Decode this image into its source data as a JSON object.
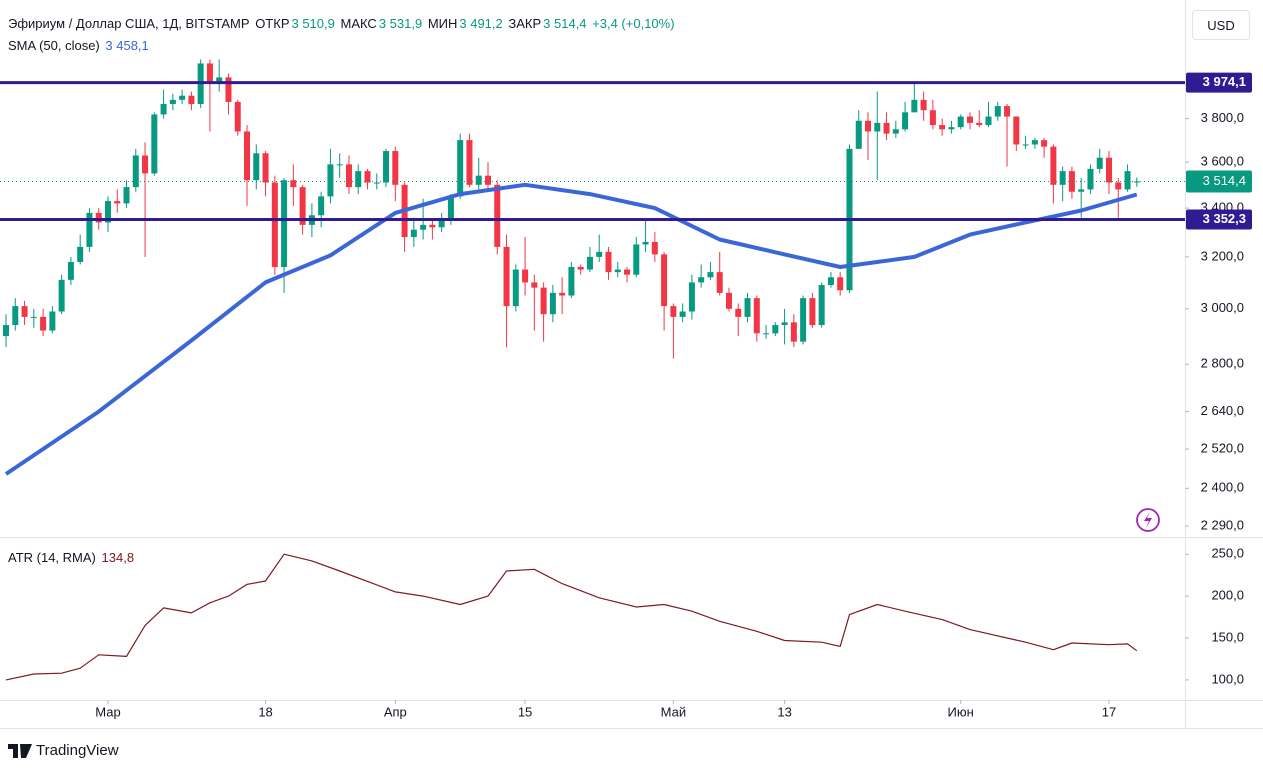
{
  "header": {
    "symbol": "Эфириум / Доллар США, 1Д, BITSTAMP",
    "open_label": "ОТКР",
    "open": "3 510,9",
    "high_label": "МАКС",
    "high": "3 531,9",
    "low_label": "МИН",
    "low": "3 491,2",
    "close_label": "ЗАКР",
    "close": "3 514,4",
    "change": "+3,4 (+0,10%)"
  },
  "currency": "USD",
  "brand": "TradingView",
  "chart_data": [
    {
      "type": "candlestick",
      "log": true,
      "ylim": [
        2259,
        4404
      ],
      "xlim": [
        -0.65,
        127.2
      ],
      "up_color": "#089981",
      "down_color": "#f23645",
      "yticks": [
        {
          "value": 2290,
          "label": "2 290,0"
        },
        {
          "value": 2400,
          "label": "2 400,0"
        },
        {
          "value": 2520,
          "label": "2 520,0"
        },
        {
          "value": 2640,
          "label": "2 640,0"
        },
        {
          "value": 2800,
          "label": "2 800,0"
        },
        {
          "value": 3000,
          "label": "3 000,0"
        },
        {
          "value": 3200,
          "label": "3 200,0"
        },
        {
          "value": 3400,
          "label": "3 400,0"
        },
        {
          "value": 3600,
          "label": "3 600,0"
        },
        {
          "value": 3800,
          "label": "3 800,0"
        }
      ],
      "xticks": [
        {
          "value": 11,
          "label": "Мар"
        },
        {
          "value": 28,
          "label": "18"
        },
        {
          "value": 42,
          "label": "Апр"
        },
        {
          "value": 56,
          "label": "15"
        },
        {
          "value": 72,
          "label": "Май"
        },
        {
          "value": 84,
          "label": "13"
        },
        {
          "value": 103,
          "label": "Июн"
        },
        {
          "value": 119,
          "label": "17"
        }
      ],
      "levels": [
        {
          "value": 3974.1,
          "label": "3 974,1",
          "color": "#311b92"
        },
        {
          "value": 3352.3,
          "label": "3 352,3",
          "color": "#311b92"
        }
      ],
      "last": 3514.4,
      "open": [
        2900,
        2940,
        3010,
        2970,
        2970,
        2920,
        2990,
        3110,
        3180,
        3240,
        3380,
        3340,
        3430,
        3420,
        3490,
        3630,
        3550,
        3820,
        3870,
        3890,
        3910,
        3870,
        4070,
        3980,
        4000,
        3880,
        3740,
        3520,
        3640,
        3510,
        3160,
        3520,
        3490,
        3330,
        3370,
        3450,
        3590,
        3590,
        3490,
        3560,
        3510,
        3510,
        3650,
        3500,
        3280,
        3310,
        3330,
        3320,
        3350,
        3450,
        3700,
        3500,
        3540,
        3500,
        3240,
        3010,
        3150,
        3100,
        3080,
        2980,
        3060,
        3050,
        3160,
        3150,
        3200,
        3220,
        3140,
        3150,
        3130,
        3250,
        3260,
        3210,
        3010,
        2970,
        2990,
        3100,
        3120,
        3140,
        3060,
        3000,
        2970,
        3040,
        2910,
        2910,
        2940,
        2950,
        2880,
        3040,
        2940,
        3090,
        3120,
        3070,
        3660,
        3790,
        3740,
        3780,
        3730,
        3750,
        3830,
        3890,
        3840,
        3770,
        3750,
        3760,
        3810,
        3780,
        3770,
        3810,
        3860,
        3810,
        3680,
        3680,
        3700,
        3670,
        3500,
        3560,
        3470,
        3480,
        3570,
        3620,
        3510,
        3480,
        3510.9
      ],
      "high": [
        2980,
        3040,
        3030,
        3000,
        3000,
        3010,
        3130,
        3200,
        3290,
        3400,
        3400,
        3450,
        3480,
        3520,
        3660,
        3690,
        3830,
        3940,
        3920,
        3940,
        3930,
        4090,
        4090,
        4090,
        4020,
        3890,
        3770,
        3680,
        3650,
        3540,
        3530,
        3590,
        3500,
        3420,
        3470,
        3660,
        3640,
        3630,
        3590,
        3570,
        3550,
        3660,
        3670,
        3510,
        3360,
        3440,
        3350,
        3380,
        3460,
        3730,
        3730,
        3620,
        3600,
        3520,
        3290,
        3170,
        3280,
        3130,
        3100,
        3090,
        3120,
        3180,
        3170,
        3240,
        3290,
        3240,
        3180,
        3160,
        3280,
        3350,
        3300,
        3220,
        3020,
        3020,
        3130,
        3170,
        3180,
        3220,
        3080,
        3020,
        3060,
        3050,
        2940,
        2950,
        3000,
        2980,
        3050,
        3060,
        3100,
        3140,
        3140,
        3680,
        3840,
        3830,
        3930,
        3830,
        3790,
        3880,
        3970,
        3930,
        3890,
        3800,
        3790,
        3820,
        3830,
        3840,
        3880,
        3880,
        3870,
        3810,
        3720,
        3710,
        3710,
        3680,
        3580,
        3580,
        3530,
        3590,
        3660,
        3650,
        3530,
        3590,
        3531.9
      ],
      "low": [
        2860,
        2920,
        2940,
        2930,
        2900,
        2910,
        2980,
        3090,
        3170,
        3220,
        3310,
        3300,
        3380,
        3400,
        3470,
        3200,
        3540,
        3800,
        3840,
        3870,
        3840,
        3850,
        3740,
        3930,
        3820,
        3720,
        3410,
        3480,
        3450,
        3130,
        3060,
        3410,
        3290,
        3280,
        3320,
        3420,
        3530,
        3460,
        3460,
        3480,
        3480,
        3490,
        3430,
        3220,
        3240,
        3270,
        3270,
        3300,
        3330,
        3440,
        3490,
        3480,
        3480,
        3210,
        2860,
        2990,
        3050,
        2920,
        2880,
        2950,
        2980,
        3040,
        3130,
        3140,
        3180,
        3110,
        3120,
        3100,
        3120,
        3220,
        3180,
        2920,
        2820,
        2950,
        2960,
        3080,
        3110,
        3050,
        2990,
        2900,
        2950,
        2880,
        2890,
        2900,
        2870,
        2860,
        2870,
        2930,
        2930,
        3080,
        3050,
        3060,
        3660,
        3610,
        3520,
        3700,
        3710,
        3740,
        3830,
        3790,
        3750,
        3720,
        3730,
        3750,
        3750,
        3760,
        3760,
        3790,
        3580,
        3650,
        3660,
        3660,
        3620,
        3420,
        3430,
        3440,
        3360,
        3460,
        3550,
        3460,
        3360,
        3470,
        3491.2
      ],
      "close": [
        2940,
        3010,
        2970,
        2970,
        2920,
        2990,
        3110,
        3180,
        3240,
        3380,
        3340,
        3430,
        3420,
        3490,
        3630,
        3550,
        3820,
        3870,
        3890,
        3910,
        3870,
        4070,
        3980,
        4000,
        3880,
        3740,
        3520,
        3640,
        3510,
        3160,
        3520,
        3490,
        3330,
        3370,
        3450,
        3590,
        3590,
        3490,
        3560,
        3510,
        3510,
        3650,
        3500,
        3280,
        3310,
        3330,
        3320,
        3350,
        3450,
        3700,
        3500,
        3540,
        3500,
        3240,
        3010,
        3150,
        3100,
        3080,
        2980,
        3060,
        3050,
        3160,
        3150,
        3200,
        3220,
        3140,
        3150,
        3130,
        3250,
        3260,
        3210,
        3010,
        2970,
        2990,
        3100,
        3120,
        3140,
        3060,
        3000,
        2970,
        3040,
        2910,
        2910,
        2940,
        2950,
        2880,
        3040,
        2940,
        3090,
        3120,
        3070,
        3660,
        3790,
        3740,
        3780,
        3730,
        3750,
        3830,
        3890,
        3840,
        3770,
        3750,
        3760,
        3810,
        3780,
        3770,
        3810,
        3860,
        3810,
        3680,
        3680,
        3700,
        3670,
        3500,
        3560,
        3470,
        3480,
        3570,
        3620,
        3510,
        3480,
        3560,
        3514.4
      ],
      "sma": {
        "name": "SMA (50, close)",
        "value_label": "3 458,1",
        "color": "#3a66d8",
        "x": [
          0,
          10,
          20,
          28,
          35,
          42,
          49,
          56,
          63,
          70,
          77,
          84,
          90,
          92,
          98,
          104,
          110,
          116,
          122
        ],
        "values": [
          2443,
          2640,
          2884,
          3100,
          3206,
          3380,
          3460,
          3500,
          3460,
          3400,
          3270,
          3210,
          3160,
          3170,
          3200,
          3290,
          3340,
          3390,
          3458.1
        ]
      }
    },
    {
      "type": "line",
      "name": "ATR (14, RMA)",
      "value_label": "134,8",
      "color": "#801922",
      "ylim": [
        76,
        267
      ],
      "yticks": [
        {
          "value": 100,
          "label": "100,0"
        },
        {
          "value": 150,
          "label": "150,0"
        },
        {
          "value": 200,
          "label": "200,0"
        },
        {
          "value": 250,
          "label": "250,0"
        }
      ],
      "x": [
        0,
        3,
        6,
        8,
        10,
        13,
        15,
        17,
        20,
        22,
        24,
        26,
        28,
        30,
        33,
        36,
        42,
        45,
        49,
        52,
        54,
        57,
        60,
        64,
        68,
        71,
        74,
        77,
        81,
        84,
        88,
        90,
        91,
        94,
        97,
        101,
        104,
        108,
        110,
        113,
        115,
        119,
        121,
        122
      ],
      "values": [
        100,
        107,
        108,
        114,
        130,
        128,
        165,
        186,
        180,
        192,
        200,
        214,
        218,
        250,
        242,
        230,
        205,
        200,
        190,
        200,
        230,
        232,
        215,
        198,
        187,
        190,
        182,
        170,
        158,
        147,
        145,
        140,
        178,
        190,
        182,
        172,
        160,
        150,
        145,
        136,
        144,
        142,
        143,
        134.8
      ]
    }
  ]
}
